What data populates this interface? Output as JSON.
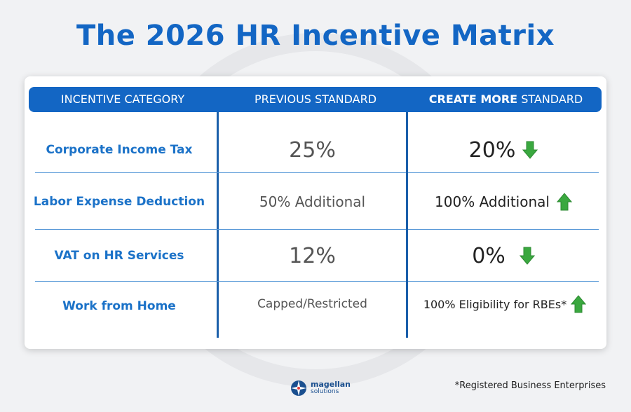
{
  "title": "The 2026 HR Incentive Matrix",
  "header": {
    "col1": "INCENTIVE CATEGORY",
    "col2": "PREVIOUS STANDARD",
    "col3_bold": "CREATE MORE",
    "col3_rest": " STANDARD"
  },
  "rows": [
    {
      "category": "Corporate Income Tax",
      "previous": "25%",
      "new": "20%",
      "trend": "down"
    },
    {
      "category": "Labor Expense Deduction",
      "previous": "50% Additional",
      "new": "100% Additional",
      "trend": "up"
    },
    {
      "category": "VAT on HR Services",
      "previous": "12%",
      "new": "0%",
      "trend": "down"
    },
    {
      "category": "Work from Home",
      "previous": "Capped/Restricted",
      "new": "100% Eligibility for RBEs*",
      "trend": "up"
    }
  ],
  "footnote": "*Registered Business Enterprises",
  "logo": {
    "line1": "magellan",
    "line2": "solutions"
  },
  "colors": {
    "brand_blue": "#1366c4",
    "arrow_green": "#3aa83f"
  },
  "icons": {
    "down": "arrow-down-icon",
    "up": "arrow-up-icon"
  }
}
